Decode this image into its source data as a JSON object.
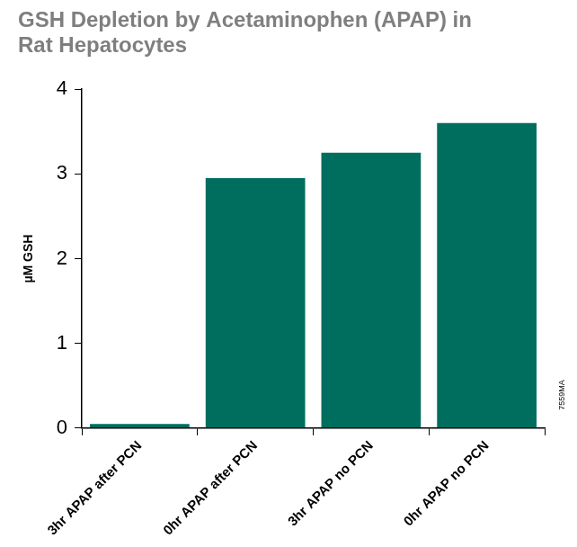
{
  "chart_data": {
    "type": "bar",
    "title": [
      "GSH Depletion by Acetaminophen (APAP) in",
      "Rat Hepatocytes"
    ],
    "y_label": "µM GSH",
    "annotation": "7559MA",
    "categories": [
      "3hr APAP after PCN",
      "0hr APAP after PCN",
      "3hr APAP no PCN",
      "0hr APAP no PCN"
    ],
    "values": [
      0.05,
      2.95,
      3.25,
      3.6
    ],
    "color": "#006e5e",
    "ylim": [
      0,
      4
    ],
    "yticks": [
      0,
      1,
      2,
      3,
      4
    ],
    "grid": false
  }
}
